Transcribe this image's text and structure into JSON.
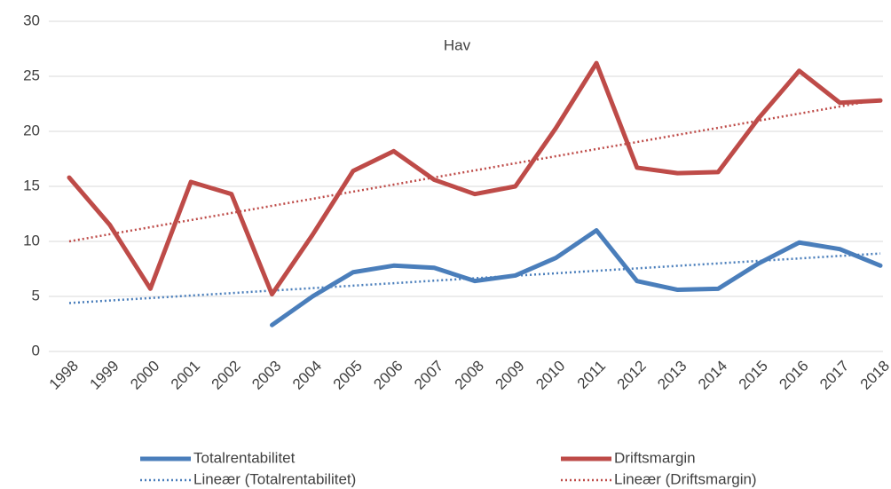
{
  "chart_data": {
    "type": "line",
    "title": "Hav",
    "categories": [
      "1998",
      "1999",
      "2000",
      "2001",
      "2002",
      "2003",
      "2004",
      "2005",
      "2006",
      "2007",
      "2008",
      "2009",
      "2010",
      "2011",
      "2012",
      "2013",
      "2014",
      "2015",
      "2016",
      "2017",
      "2018"
    ],
    "series": [
      {
        "name": "Totalrentabilitet",
        "color": "#4a7ebb",
        "dashed": false,
        "values": [
          null,
          null,
          null,
          null,
          null,
          2.4,
          5.0,
          7.2,
          7.8,
          7.6,
          6.4,
          6.9,
          8.5,
          11.0,
          6.4,
          5.6,
          5.7,
          8.0,
          9.9,
          9.3,
          7.8
        ]
      },
      {
        "name": "Driftsmargin",
        "color": "#be4b48",
        "dashed": false,
        "values": [
          15.8,
          11.5,
          5.7,
          15.4,
          14.3,
          5.2,
          10.6,
          16.4,
          18.2,
          15.6,
          14.3,
          15.0,
          20.3,
          26.2,
          16.7,
          16.2,
          16.3,
          21.2,
          25.5,
          22.6,
          22.8
        ]
      },
      {
        "name": "Lineær (Totalrentabilitet)",
        "color": "#4a7ebb",
        "dashed": true,
        "values": [
          4.4,
          4.63,
          4.85,
          5.08,
          5.3,
          5.53,
          5.75,
          5.98,
          6.2,
          6.43,
          6.65,
          6.88,
          7.1,
          7.33,
          7.55,
          7.78,
          8.0,
          8.23,
          8.45,
          8.68,
          8.9
        ]
      },
      {
        "name": "Lineær (Driftsmargin)",
        "color": "#be4b48",
        "dashed": true,
        "values": [
          10.0,
          10.65,
          11.29,
          11.94,
          12.58,
          13.23,
          13.87,
          14.52,
          15.16,
          15.81,
          16.45,
          17.1,
          17.74,
          18.39,
          19.03,
          19.68,
          20.32,
          20.97,
          21.61,
          22.26,
          22.9
        ]
      }
    ],
    "ylim": [
      0,
      30
    ],
    "yticks": [
      0,
      5,
      10,
      15,
      20,
      25,
      30
    ],
    "grid": true
  }
}
